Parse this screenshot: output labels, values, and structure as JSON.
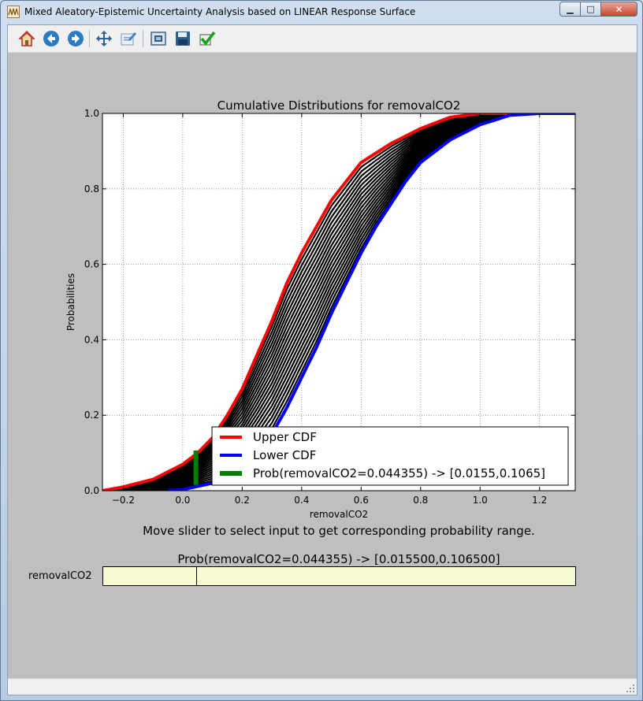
{
  "window": {
    "title": "Mixed Aleatory-Epistemic Uncertainty Analysis based on LINEAR Response Surface",
    "controls": {
      "minimize": "▁",
      "maximize": "□",
      "close": "✕"
    }
  },
  "toolbar": {
    "buttons": [
      {
        "name": "home-button",
        "icon": "home-icon",
        "color": "#c0392b"
      },
      {
        "name": "back-button",
        "icon": "arrow-left-icon",
        "color": "#2b7bbf"
      },
      {
        "name": "forward-button",
        "icon": "arrow-right-icon",
        "color": "#2b7bbf"
      },
      {
        "name": "pan-button",
        "icon": "move-icon",
        "color": "#2b5f9e"
      },
      {
        "name": "configure-subplots-button",
        "icon": "edit-icon",
        "color": "#3a7fc2"
      },
      {
        "name": "edit-axes-button",
        "icon": "figure-options-icon",
        "color": "#3c5a78"
      },
      {
        "name": "save-button",
        "icon": "floppy-disk-icon",
        "color": "#2e5f93"
      },
      {
        "name": "apply-button",
        "icon": "checkmark-icon",
        "color": "#1aa31a"
      }
    ]
  },
  "chart_data": {
    "type": "line",
    "title": "Cumulative Distributions for removalCO2",
    "xlabel": "removalCO2",
    "ylabel": "Probabilities",
    "xlim": [
      -0.27,
      1.32
    ],
    "ylim": [
      0,
      1
    ],
    "xticks": [
      -0.2,
      0.0,
      0.2,
      0.4,
      0.6,
      0.8,
      1.0,
      1.2
    ],
    "xtick_labels": [
      "−0.2",
      "0.0",
      "0.2",
      "0.4",
      "0.6",
      "0.8",
      "1.0",
      "1.2"
    ],
    "yticks": [
      0.0,
      0.2,
      0.4,
      0.6,
      0.8,
      1.0
    ],
    "ytick_labels": [
      "0.0",
      "0.2",
      "0.4",
      "0.6",
      "0.8",
      "1.0"
    ],
    "grid": true,
    "legend_location": "lower right",
    "series": [
      {
        "name": "Upper CDF",
        "color": "#ff0000",
        "x": [
          -0.27,
          -0.2,
          -0.1,
          0.0,
          0.05,
          0.1,
          0.15,
          0.2,
          0.25,
          0.3,
          0.35,
          0.4,
          0.45,
          0.5,
          0.55,
          0.6,
          0.7,
          0.8,
          0.9,
          1.0,
          1.2
        ],
        "y": [
          0.0,
          0.01,
          0.03,
          0.07,
          0.1,
          0.14,
          0.2,
          0.27,
          0.36,
          0.45,
          0.55,
          0.63,
          0.7,
          0.77,
          0.82,
          0.87,
          0.92,
          0.96,
          0.99,
          1.0,
          1.0
        ]
      },
      {
        "name": "Lower CDF",
        "color": "#0000ff",
        "x": [
          -0.05,
          0.0,
          0.1,
          0.2,
          0.25,
          0.3,
          0.35,
          0.4,
          0.45,
          0.5,
          0.55,
          0.6,
          0.65,
          0.7,
          0.75,
          0.8,
          0.9,
          1.0,
          1.1,
          1.2,
          1.32
        ],
        "y": [
          0.0,
          0.003,
          0.02,
          0.06,
          0.1,
          0.15,
          0.22,
          0.3,
          0.38,
          0.47,
          0.55,
          0.63,
          0.7,
          0.76,
          0.82,
          0.87,
          0.93,
          0.97,
          0.995,
          1.0,
          1.0
        ]
      },
      {
        "name": "Prob(removalCO2=0.044355) -> [0.0155,0.1065]",
        "color": "#008000",
        "x": [
          0.044355,
          0.044355
        ],
        "y": [
          0.0155,
          0.1065
        ]
      }
    ],
    "ensemble": {
      "color": "#000000",
      "count": 20
    }
  },
  "instructions": "Move slider to select input to get corresponding probability range.",
  "result_text": "Prob(removalCO2=0.044355) -> [0.015500,0.106500]",
  "slider": {
    "label": "removalCO2",
    "value": 0.044355
  }
}
